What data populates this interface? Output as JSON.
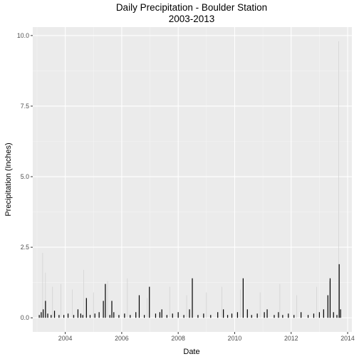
{
  "chart_data": {
    "type": "bar",
    "title_lines": [
      "Daily Precipitation - Boulder Station",
      "2003-2013"
    ],
    "xlabel": "Date",
    "ylabel": "Precipitation (Inches)",
    "xlim": [
      2002.85,
      2014.15
    ],
    "ylim": [
      -0.5,
      10.3
    ],
    "x_ticks": [
      2004,
      2006,
      2008,
      2010,
      2012,
      2014
    ],
    "x_tick_labels": [
      "2004",
      "2006",
      "2008",
      "2010",
      "2012",
      "2014"
    ],
    "y_ticks": [
      0,
      2.5,
      5,
      7.5,
      10
    ],
    "y_tick_labels": [
      "0.0",
      "2.5",
      "5.0",
      "7.5",
      "10.0"
    ],
    "grid": true,
    "series": [
      {
        "x": [
          2003.08,
          2003.15,
          2003.22,
          2003.3,
          2003.38,
          2003.5,
          2003.62,
          2003.78,
          2003.95,
          2004.1,
          2004.3,
          2004.45,
          2004.55,
          2004.62,
          2004.75,
          2004.88,
          2005.05,
          2005.2,
          2005.35,
          2005.42,
          2005.58,
          2005.65,
          2005.72,
          2005.9,
          2006.1,
          2006.3,
          2006.5,
          2006.62,
          2006.8,
          2006.98,
          2007.2,
          2007.35,
          2007.42,
          2007.6,
          2007.8,
          2008.0,
          2008.2,
          2008.4,
          2008.5,
          2008.7,
          2008.9,
          2009.15,
          2009.4,
          2009.6,
          2009.75,
          2009.9,
          2010.1,
          2010.3,
          2010.45,
          2010.6,
          2010.8,
          2011.05,
          2011.15,
          2011.4,
          2011.55,
          2011.7,
          2011.9,
          2012.1,
          2012.35,
          2012.6,
          2012.8,
          2013.0,
          2013.15,
          2013.3,
          2013.38,
          2013.5,
          2013.62,
          2013.7,
          2013.75
        ],
        "y": [
          0.1,
          0.2,
          0.3,
          0.6,
          0.15,
          0.1,
          0.25,
          0.1,
          0.1,
          0.15,
          0.1,
          0.3,
          0.15,
          0.1,
          0.7,
          0.1,
          0.15,
          0.2,
          0.6,
          1.2,
          0.1,
          0.6,
          0.2,
          0.1,
          0.15,
          0.1,
          0.2,
          0.8,
          0.1,
          1.1,
          0.15,
          0.2,
          0.3,
          0.1,
          0.15,
          0.2,
          0.1,
          0.3,
          1.4,
          0.1,
          0.15,
          0.1,
          0.2,
          0.3,
          0.1,
          0.15,
          0.2,
          1.4,
          0.3,
          0.1,
          0.15,
          0.2,
          0.3,
          0.1,
          0.2,
          0.1,
          0.15,
          0.1,
          0.2,
          0.1,
          0.15,
          0.2,
          0.3,
          0.8,
          1.4,
          0.2,
          0.1,
          1.9,
          0.3
        ]
      }
    ],
    "faint_series": {
      "x": [
        2003.2,
        2003.3,
        2003.55,
        2003.85,
        2004.25,
        2004.65,
        2005.0,
        2005.5,
        2006.2,
        2006.9,
        2007.7,
        2008.3,
        2009.0,
        2009.55,
        2010.2,
        2010.9,
        2011.6,
        2012.2,
        2012.9,
        2013.35,
        2013.68
      ],
      "y": [
        2.3,
        1.6,
        1.1,
        1.2,
        1.0,
        1.7,
        0.9,
        1.3,
        1.4,
        0.7,
        1.1,
        0.8,
        0.9,
        1.1,
        1.0,
        0.9,
        1.2,
        0.8,
        1.1,
        1.3,
        9.8
      ]
    },
    "colors": {
      "panel": "#ebebeb",
      "grid_major": "#ffffff",
      "grid_minor": "#f5f5f5",
      "bar": "#000000",
      "faint_bar": "#cfcfcf",
      "tick": "#333333"
    }
  }
}
